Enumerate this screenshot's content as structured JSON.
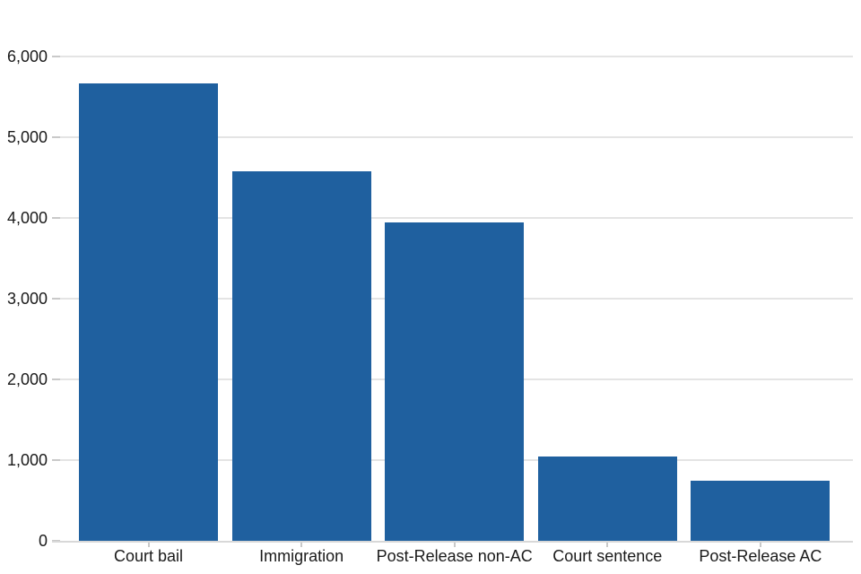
{
  "chart_data": {
    "type": "bar",
    "title": "",
    "xlabel": "",
    "ylabel": "",
    "categories": [
      "Court bail",
      "Immigration",
      "Post-Release non-AC",
      "Court sentence",
      "Post-Release AC"
    ],
    "values": [
      5670,
      4575,
      3950,
      1045,
      740
    ],
    "ylim": [
      0,
      6300
    ],
    "yticks": [
      0,
      1000,
      2000,
      3000,
      4000,
      5000,
      6000
    ],
    "ytick_labels": [
      "0",
      "1,000",
      "2,000",
      "3,000",
      "4,000",
      "5,000",
      "6,000"
    ],
    "grid": true,
    "legend": false
  },
  "colors": {
    "bar": "#1f609f",
    "gridline": "#e4e4e4",
    "axis_line": "#d8d8d8",
    "tick": "#c9c9c9",
    "text": "#1a1a1a"
  }
}
